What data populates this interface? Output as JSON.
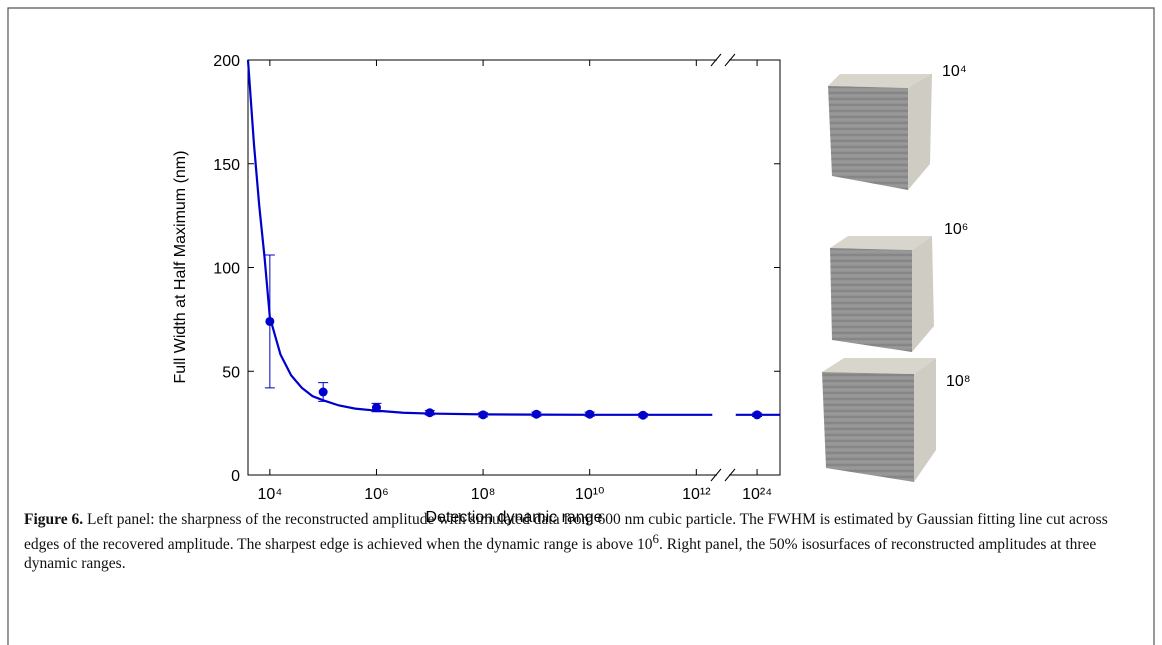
{
  "chart_data": {
    "type": "line",
    "ylabel": "Full Width at Half Maximum (nm)",
    "xlabel": "Detection dynamic range",
    "ylim": [
      0,
      200
    ],
    "yticks": [
      0,
      50,
      100,
      150,
      200
    ],
    "xlim": [
      3.59,
      24.43
    ],
    "x_break": [
      12.5,
      23.36
    ],
    "xticks": [
      {
        "value": 4,
        "label": "10⁴"
      },
      {
        "value": 6,
        "label": "10⁶"
      },
      {
        "value": 8,
        "label": "10⁸"
      },
      {
        "value": 10,
        "label": "10¹⁰"
      },
      {
        "value": 12,
        "label": "10¹²"
      },
      {
        "value": 24,
        "label": "10²⁴"
      }
    ],
    "log_x": true,
    "series": [
      {
        "kind": "curve",
        "color": "#0000cc",
        "x": [
          3.59,
          3.7,
          3.8,
          3.9,
          4,
          4.2,
          4.4,
          4.6,
          4.8,
          5,
          5.3,
          5.6,
          6,
          6.5,
          7,
          8,
          9,
          10,
          11,
          12.3,
          18,
          23.6,
          24.43
        ],
        "values": [
          200,
          160,
          130,
          105,
          76,
          58,
          48,
          42,
          38,
          36,
          33.5,
          32,
          31,
          30,
          29.6,
          29.2,
          29.1,
          29,
          29,
          29,
          null,
          29,
          29
        ]
      },
      {
        "kind": "points",
        "color": "#0000cc",
        "x": [
          4,
          5,
          6,
          7,
          8,
          9,
          10,
          11,
          24
        ],
        "values": [
          74,
          40,
          32.5,
          30,
          29,
          29.3,
          29.3,
          28.8,
          29
        ],
        "errors": [
          32,
          4.5,
          2,
          1,
          1,
          1,
          1,
          0.8,
          0.8
        ]
      }
    ]
  },
  "cubes": [
    {
      "label": "10⁴"
    },
    {
      "label": "10⁶"
    },
    {
      "label": "10⁸"
    }
  ],
  "caption": {
    "label": "Figure 6.",
    "text_1": "Left panel: the sharpness of the reconstructed amplitude with simulated data from 600 nm cubic particle. The FWHM is estimated by Gaussian fitting line cut across edges of the recovered amplitude. The sharpest edge is achieved when the dynamic range is above 10",
    "superscript": "6",
    "text_2": ". Right panel, the 50% isosurfaces of reconstructed amplitudes at three dynamic ranges."
  }
}
